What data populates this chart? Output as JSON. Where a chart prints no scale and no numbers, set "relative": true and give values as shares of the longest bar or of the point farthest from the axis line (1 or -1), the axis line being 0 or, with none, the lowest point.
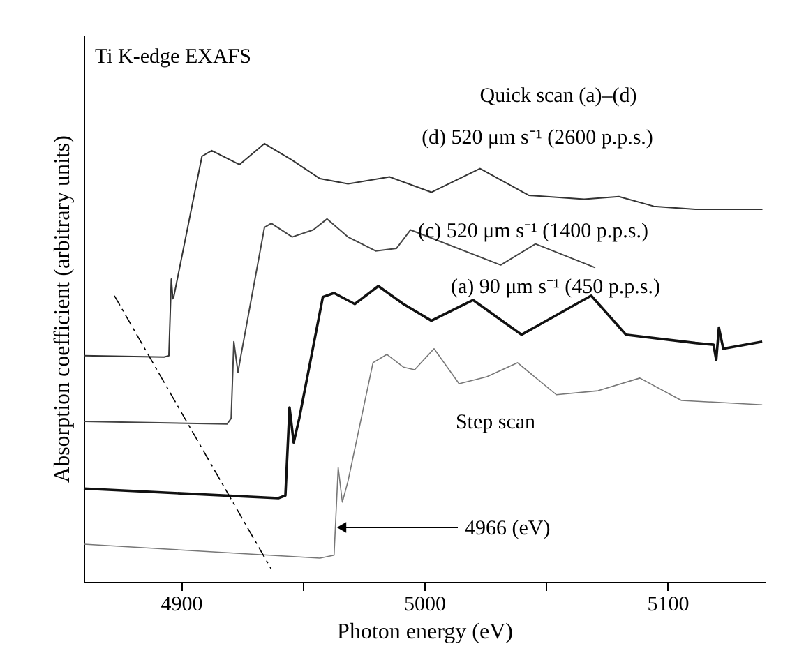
{
  "chart_data": {
    "type": "line",
    "title": "Ti K-edge EXAFS",
    "subtitle": "Quick scan (a)–(d)",
    "xlabel": "Photon energy (eV)",
    "ylabel": "Absorption coefficient (arbitrary units)",
    "relative": true,
    "xlim": [
      4860,
      5140
    ],
    "xticks": [
      4900,
      {
        "value": 4950,
        "label": null
      },
      5000,
      {
        "value": 5050,
        "label": null
      },
      5100
    ],
    "tick_labels": "x",
    "grid": false,
    "marker": "none",
    "series": [
      {
        "name": "(d) 520 μm s⁻¹ (2600 p.p.s.)",
        "color": "#333333",
        "x": [
          4860,
          4893,
          4895,
          4896,
          4896.6,
          4897.1,
          4908.6,
          4912.6,
          4924,
          4934.3,
          4945.7,
          4957.1,
          4968.6,
          4985.7,
          5002.9,
          5022.9,
          5042.9,
          5065.7,
          5080,
          5094.3,
          5111.4,
          5139
        ],
        "values": [
          0.516,
          0.513,
          0.516,
          0.691,
          0.646,
          0.653,
          0.971,
          0.984,
          0.952,
          1.0,
          0.962,
          0.92,
          0.908,
          0.924,
          0.889,
          0.943,
          0.882,
          0.873,
          0.879,
          0.857,
          0.85,
          0.85
        ]
      },
      {
        "name": "(c) 520 μm s⁻¹ (1400 p.p.s.)",
        "color": "#444444",
        "x": [
          4860,
          4918.9,
          4920.6,
          4921.7,
          4923.4,
          4924.6,
          4934.3,
          4937.1,
          4945.7,
          4954.3,
          4960,
          4968.6,
          4980,
          4988.6,
          4994.3,
          5031.4,
          5045.7,
          5070.3
        ],
        "values": [
          0.366,
          0.36,
          0.373,
          0.548,
          0.478,
          0.516,
          0.809,
          0.818,
          0.787,
          0.803,
          0.828,
          0.787,
          0.755,
          0.761,
          0.803,
          0.723,
          0.771,
          0.717
        ]
      },
      {
        "name": "(a) 90 μm s⁻¹ (450 p.p.s.)",
        "color": "#111111",
        "x": [
          4860,
          4940,
          4942.9,
          4944.6,
          4946.3,
          4948.6,
          4958.3,
          4962.9,
          4971.4,
          4981.1,
          4991.4,
          5002.9,
          5020,
          5040,
          5068.6,
          5082.9,
          5111.4,
          5118.9,
          5120,
          5121.1,
          5122.9,
          5138.9
        ],
        "values": [
          0.213,
          0.191,
          0.197,
          0.398,
          0.318,
          0.373,
          0.65,
          0.659,
          0.634,
          0.675,
          0.634,
          0.596,
          0.643,
          0.564,
          0.653,
          0.564,
          0.545,
          0.541,
          0.506,
          0.58,
          0.532,
          0.548
        ]
      },
      {
        "name": "Step scan",
        "color": "#777777",
        "x": [
          4860,
          4957.1,
          4962.9,
          4964.6,
          4966.3,
          4968.6,
          4978.9,
          4984.6,
          4991.4,
          4996,
          5004,
          5014.3,
          5025.7,
          5038.3,
          5054.3,
          5071.4,
          5088.6,
          5105.7,
          5138.9
        ],
        "values": [
          0.086,
          0.054,
          0.061,
          0.261,
          0.182,
          0.229,
          0.5,
          0.519,
          0.49,
          0.484,
          0.532,
          0.452,
          0.468,
          0.5,
          0.427,
          0.436,
          0.465,
          0.414,
          0.404
        ]
      },
      {
        "color": "#000000",
        "line_style": "dashed",
        "x": [
          4872.6,
          4937.1
        ],
        "values": [
          0.653,
          0.029
        ]
      }
    ],
    "annotations": [
      {
        "text": "4966 (eV)",
        "x": 4966,
        "y": 0.124
      }
    ]
  }
}
